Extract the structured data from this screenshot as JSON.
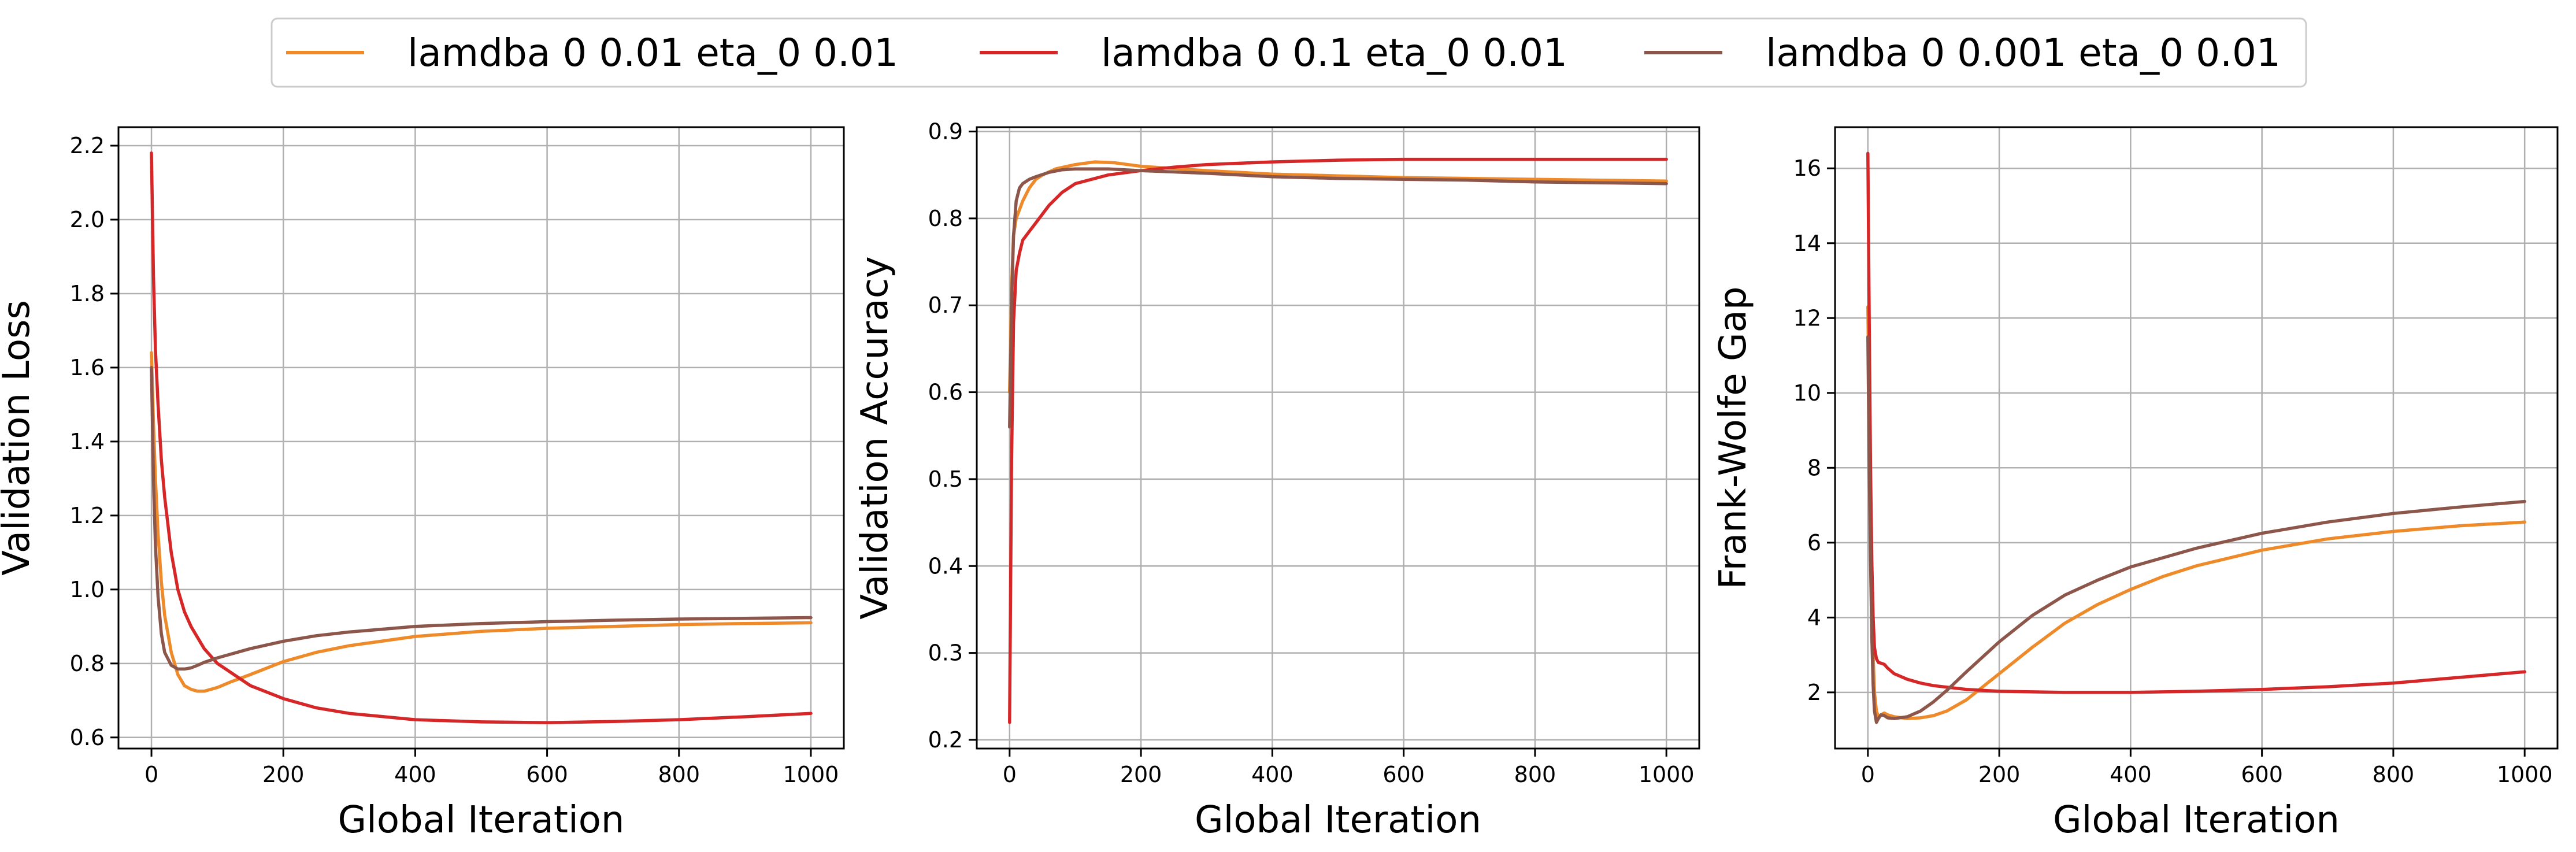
{
  "chart_data": [
    {
      "type": "line",
      "xlabel": "Global Iteration",
      "ylabel": "Validation Loss",
      "xlim": [
        -50,
        1050
      ],
      "ylim": [
        0.57,
        2.25
      ],
      "xticks": [
        0,
        200,
        400,
        600,
        800,
        1000
      ],
      "yticks": [
        0.6,
        0.8,
        1.0,
        1.2,
        1.4,
        1.6,
        1.8,
        2.0,
        2.2
      ],
      "ytick_decimals": 1,
      "grid": true,
      "series": [
        {
          "name": "lamdba 0 0.01 eta_0 0.01",
          "color": "#ee8a29",
          "x": [
            0,
            3,
            6,
            10,
            15,
            20,
            30,
            40,
            50,
            60,
            70,
            80,
            90,
            100,
            120,
            150,
            200,
            250,
            300,
            400,
            500,
            600,
            700,
            800,
            900,
            1000
          ],
          "y": [
            1.64,
            1.45,
            1.3,
            1.15,
            1.02,
            0.93,
            0.83,
            0.77,
            0.74,
            0.73,
            0.725,
            0.725,
            0.73,
            0.735,
            0.75,
            0.77,
            0.805,
            0.83,
            0.848,
            0.873,
            0.887,
            0.895,
            0.9,
            0.905,
            0.908,
            0.91
          ]
        },
        {
          "name": "lamdba 0 0.1 eta_0 0.01",
          "color": "#d62728",
          "x": [
            0,
            3,
            6,
            10,
            15,
            20,
            30,
            40,
            50,
            60,
            80,
            100,
            150,
            200,
            250,
            300,
            400,
            500,
            600,
            700,
            800,
            900,
            1000
          ],
          "y": [
            2.18,
            1.85,
            1.65,
            1.5,
            1.35,
            1.25,
            1.1,
            1.0,
            0.94,
            0.9,
            0.84,
            0.8,
            0.74,
            0.705,
            0.68,
            0.665,
            0.648,
            0.642,
            0.64,
            0.643,
            0.648,
            0.656,
            0.665
          ]
        },
        {
          "name": "lamdba 0 0.001 eta_0 0.01",
          "color": "#8c564b",
          "x": [
            0,
            3,
            6,
            10,
            15,
            20,
            30,
            40,
            50,
            60,
            70,
            80,
            100,
            150,
            200,
            250,
            300,
            400,
            500,
            600,
            700,
            800,
            900,
            1000
          ],
          "y": [
            1.6,
            1.3,
            1.12,
            0.98,
            0.88,
            0.83,
            0.795,
            0.785,
            0.785,
            0.788,
            0.795,
            0.803,
            0.815,
            0.84,
            0.86,
            0.875,
            0.885,
            0.9,
            0.908,
            0.913,
            0.917,
            0.92,
            0.922,
            0.924
          ]
        }
      ]
    },
    {
      "type": "line",
      "xlabel": "Global Iteration",
      "ylabel": "Validation Accuracy",
      "xlim": [
        -50,
        1050
      ],
      "ylim": [
        0.19,
        0.905
      ],
      "xticks": [
        0,
        200,
        400,
        600,
        800,
        1000
      ],
      "yticks": [
        0.2,
        0.3,
        0.4,
        0.5,
        0.6,
        0.7,
        0.8,
        0.9
      ],
      "ytick_decimals": 1,
      "grid": true,
      "series": [
        {
          "name": "lamdba 0 0.01 eta_0 0.01",
          "color": "#ee8a29",
          "x": [
            0,
            3,
            6,
            10,
            15,
            20,
            30,
            40,
            50,
            70,
            100,
            130,
            160,
            200,
            300,
            400,
            500,
            600,
            700,
            800,
            900,
            1000
          ],
          "y": [
            0.6,
            0.72,
            0.78,
            0.8,
            0.81,
            0.82,
            0.835,
            0.845,
            0.85,
            0.857,
            0.862,
            0.865,
            0.864,
            0.86,
            0.855,
            0.851,
            0.849,
            0.847,
            0.846,
            0.845,
            0.844,
            0.843
          ]
        },
        {
          "name": "lamdba 0 0.1 eta_0 0.01",
          "color": "#d62728",
          "x": [
            0,
            3,
            6,
            10,
            15,
            20,
            30,
            40,
            60,
            80,
            100,
            150,
            200,
            250,
            300,
            400,
            500,
            600,
            700,
            800,
            900,
            1000
          ],
          "y": [
            0.22,
            0.52,
            0.68,
            0.74,
            0.76,
            0.775,
            0.785,
            0.795,
            0.815,
            0.83,
            0.84,
            0.85,
            0.855,
            0.859,
            0.862,
            0.865,
            0.867,
            0.868,
            0.868,
            0.868,
            0.868,
            0.868
          ]
        },
        {
          "name": "lamdba 0 0.001 eta_0 0.01",
          "color": "#8c564b",
          "x": [
            0,
            3,
            6,
            10,
            15,
            20,
            30,
            40,
            60,
            80,
            100,
            150,
            200,
            300,
            400,
            500,
            600,
            700,
            800,
            900,
            1000
          ],
          "y": [
            0.56,
            0.7,
            0.78,
            0.82,
            0.835,
            0.84,
            0.845,
            0.848,
            0.853,
            0.856,
            0.857,
            0.857,
            0.855,
            0.852,
            0.848,
            0.846,
            0.845,
            0.844,
            0.842,
            0.841,
            0.84
          ]
        }
      ]
    },
    {
      "type": "line",
      "xlabel": "Global Iteration",
      "ylabel": "Frank-Wolfe Gap",
      "xlim": [
        -50,
        1050
      ],
      "ylim": [
        0.5,
        17.1
      ],
      "xticks": [
        0,
        200,
        400,
        600,
        800,
        1000
      ],
      "yticks": [
        2,
        4,
        6,
        8,
        10,
        12,
        14,
        16
      ],
      "ytick_decimals": 0,
      "grid": true,
      "series": [
        {
          "name": "lamdba 0 0.01 eta_0 0.01",
          "color": "#ee8a29",
          "x": [
            0,
            2,
            4,
            6,
            8,
            10,
            13,
            16,
            20,
            25,
            30,
            40,
            60,
            80,
            100,
            120,
            150,
            200,
            250,
            300,
            350,
            400,
            450,
            500,
            600,
            700,
            800,
            900,
            1000
          ],
          "y": [
            12.3,
            9.0,
            6.5,
            4.5,
            3.0,
            2.0,
            1.5,
            1.35,
            1.4,
            1.45,
            1.4,
            1.35,
            1.3,
            1.32,
            1.38,
            1.5,
            1.8,
            2.5,
            3.2,
            3.85,
            4.35,
            4.75,
            5.1,
            5.38,
            5.8,
            6.1,
            6.3,
            6.45,
            6.55
          ]
        },
        {
          "name": "lamdba 0 0.1 eta_0 0.01",
          "color": "#d62728",
          "x": [
            0,
            2,
            4,
            6,
            8,
            10,
            13,
            16,
            20,
            25,
            30,
            40,
            60,
            80,
            100,
            150,
            200,
            300,
            400,
            500,
            600,
            700,
            800,
            900,
            1000
          ],
          "y": [
            16.4,
            12.0,
            8.0,
            5.5,
            4.0,
            3.2,
            2.9,
            2.8,
            2.78,
            2.75,
            2.65,
            2.5,
            2.35,
            2.25,
            2.18,
            2.08,
            2.03,
            2.0,
            2.0,
            2.03,
            2.08,
            2.15,
            2.25,
            2.4,
            2.55
          ]
        },
        {
          "name": "lamdba 0 0.001 eta_0 0.01",
          "color": "#8c564b",
          "x": [
            0,
            2,
            4,
            6,
            8,
            10,
            13,
            16,
            20,
            25,
            30,
            40,
            60,
            80,
            100,
            120,
            150,
            200,
            250,
            300,
            350,
            400,
            500,
            600,
            700,
            800,
            900,
            1000
          ],
          "y": [
            11.5,
            8.0,
            5.5,
            3.5,
            2.2,
            1.5,
            1.2,
            1.3,
            1.4,
            1.38,
            1.32,
            1.3,
            1.35,
            1.5,
            1.75,
            2.05,
            2.55,
            3.35,
            4.05,
            4.6,
            5.0,
            5.35,
            5.85,
            6.25,
            6.55,
            6.78,
            6.95,
            7.1
          ]
        }
      ]
    }
  ]
}
